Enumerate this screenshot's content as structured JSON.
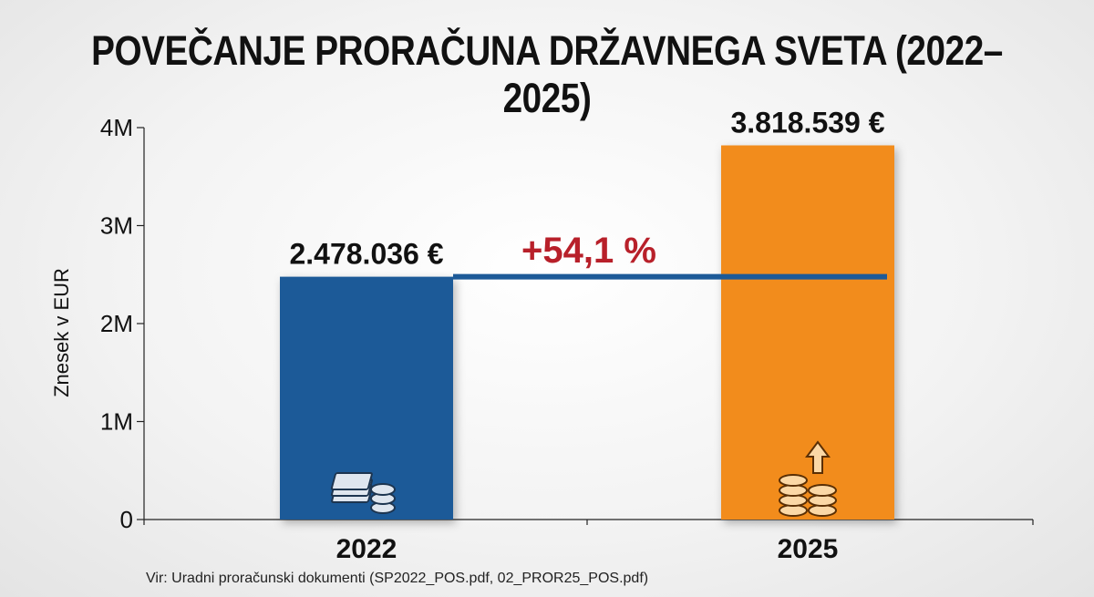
{
  "chart_data": {
    "type": "bar",
    "title": "POVEČANJE PRORAČUNA DRŽAVNEGA SVETA (2022–2025)",
    "ylabel": "Znesek v EUR",
    "xlabel": "",
    "categories": [
      "2022",
      "2025"
    ],
    "values": [
      2478036,
      3818539
    ],
    "value_labels": [
      "2.478.036 €",
      "3.818.539 €"
    ],
    "bar_colors": [
      "#1d5a98",
      "#f28c1c"
    ],
    "bar_icons": [
      "money-stack-icon",
      "coins-arrow-up-icon"
    ],
    "ylim": [
      0,
      4000000
    ],
    "yticks": [
      {
        "value": 0,
        "label": "0"
      },
      {
        "value": 1000000,
        "label": "1M"
      },
      {
        "value": 2000000,
        "label": "2M"
      },
      {
        "value": 3000000,
        "label": "3M"
      },
      {
        "value": 4000000,
        "label": "4M"
      }
    ],
    "reference_line": {
      "value": 2478036,
      "color": "#1d5a98"
    },
    "annotation": {
      "text": "+54,1 %",
      "color": "#b8202a"
    },
    "grid": false,
    "legend": "none"
  },
  "source_note": "Vir: Uradni proračunski dokumenti (SP2022_POS.pdf, 02_PROR25_POS.pdf)"
}
